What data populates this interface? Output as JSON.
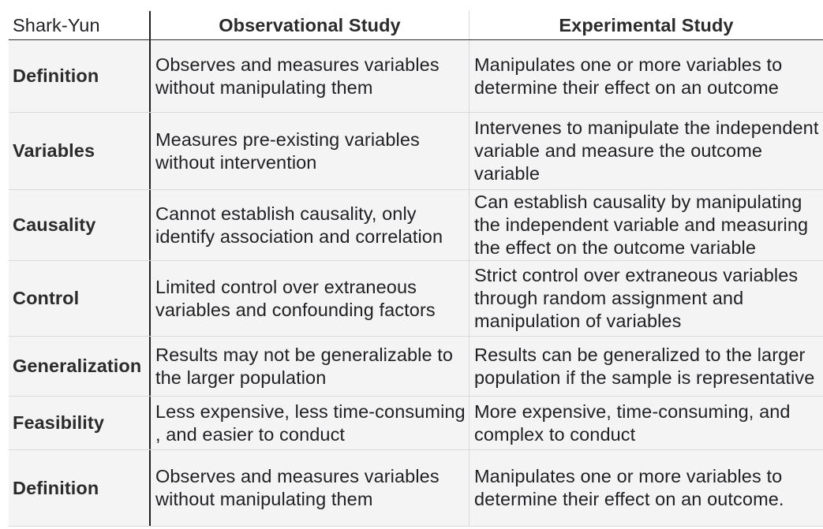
{
  "table": {
    "corner_label": "Shark-Yun",
    "columns": [
      "Observational Study",
      "Experimental Study"
    ],
    "rows": [
      {
        "label": "Definition",
        "observational": "Observes and measures variables without manipulating them",
        "experimental": "Manipulates one or more variables to determine their effect on an outcome"
      },
      {
        "label": "Variables",
        "observational": "Measures pre-existing variables without intervention",
        "experimental": "Intervenes to manipulate the independent variable and measure the outcome variable"
      },
      {
        "label": "Causality",
        "observational": "Cannot establish causality, only identify association and correlation",
        "experimental": "Can establish causality by manipulating the independent variable and measuring the effect on the outcome variable"
      },
      {
        "label": "Control",
        "observational": "Limited control over extraneous variables and confounding factors",
        "experimental": "Strict control over extraneous variables through random assignment and manipulation of variables"
      },
      {
        "label": "Generalization",
        "observational": "Results may not be generalizable to the larger population",
        "experimental": "Results can be generalized to the larger population if the sample is representative"
      },
      {
        "label": "Feasibility",
        "observational": "Less expensive, less time-consuming , and easier to conduct",
        "experimental": "More expensive, time-consuming, and complex to conduct"
      },
      {
        "label": "Definition",
        "observational": "Observes and measures variables without manipulating them",
        "experimental": "Manipulates one or more variables to determine their effect on an outcome."
      }
    ]
  }
}
